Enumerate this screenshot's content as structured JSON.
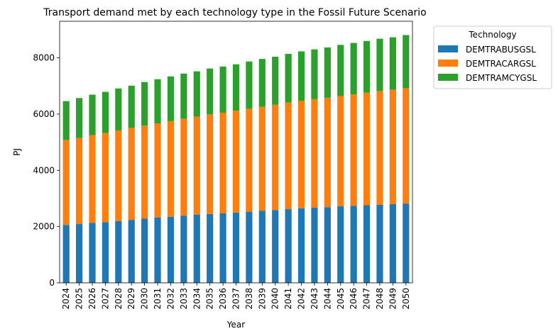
{
  "chart_data": {
    "type": "bar",
    "stacked": true,
    "title": "Transport demand met by each technology type in the Fossil Future Scenario",
    "xlabel": "Year",
    "ylabel": "PJ",
    "ylim": [
      0,
      9300
    ],
    "yticks": [
      0,
      2000,
      4000,
      6000,
      8000
    ],
    "legend": {
      "title": "Technology",
      "placement": "outside-top-right"
    },
    "categories": [
      "2024",
      "2025",
      "2026",
      "2027",
      "2028",
      "2029",
      "2030",
      "2031",
      "2032",
      "2033",
      "2034",
      "2035",
      "2036",
      "2037",
      "2038",
      "2039",
      "2040",
      "2041",
      "2042",
      "2043",
      "2044",
      "2045",
      "2046",
      "2047",
      "2048",
      "2049",
      "2050"
    ],
    "series": [
      {
        "name": "DEMTRABUSGSL",
        "color": "#1f77b4",
        "values": [
          2060,
          2090,
          2130,
          2160,
          2200,
          2240,
          2280,
          2320,
          2350,
          2390,
          2420,
          2450,
          2470,
          2500,
          2530,
          2560,
          2590,
          2620,
          2650,
          2670,
          2690,
          2720,
          2740,
          2760,
          2780,
          2800,
          2820
        ]
      },
      {
        "name": "DEMTRACARGSL",
        "color": "#ff7f0e",
        "values": [
          3020,
          3060,
          3120,
          3170,
          3220,
          3270,
          3310,
          3350,
          3400,
          3440,
          3490,
          3540,
          3580,
          3620,
          3660,
          3700,
          3740,
          3790,
          3820,
          3860,
          3890,
          3920,
          3960,
          4000,
          4040,
          4070,
          4100
        ]
      },
      {
        "name": "DEMTRAMCYGSL",
        "color": "#2ca02c",
        "values": [
          1380,
          1420,
          1440,
          1460,
          1490,
          1500,
          1550,
          1570,
          1590,
          1610,
          1610,
          1630,
          1640,
          1650,
          1680,
          1700,
          1710,
          1730,
          1760,
          1770,
          1790,
          1820,
          1830,
          1840,
          1860,
          1860,
          1890
        ]
      }
    ]
  }
}
